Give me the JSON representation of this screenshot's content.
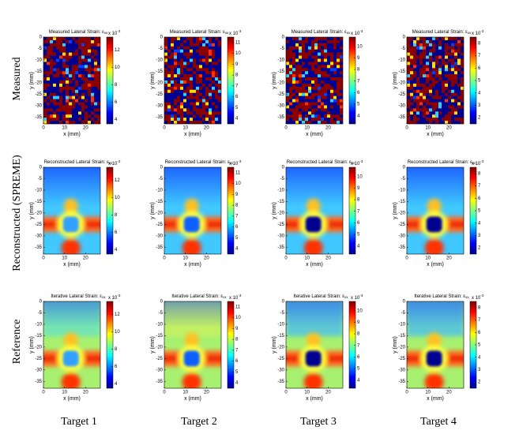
{
  "row_labels": [
    "Measured",
    "Reconstructed (SPREME)",
    "Reference"
  ],
  "column_labels": [
    "Target 1",
    "Target 2",
    "Target 3",
    "Target 4"
  ],
  "chart_data": [
    {
      "type": "heatmap",
      "title": "Measured Lateral Strain: ε",
      "title_sub": "xx",
      "xlabel": "x (mm)",
      "ylabel": "y (mm)",
      "xlim": [
        0,
        27
      ],
      "xticks": [
        0,
        10,
        20
      ],
      "ylim": [
        -38,
        0
      ],
      "yticks": [
        0,
        -5,
        -10,
        -15,
        -20,
        -25,
        -30,
        -35
      ],
      "colorbar": {
        "lim": [
          3.5,
          13.5
        ],
        "ticks": [
          4,
          6,
          8,
          10,
          12
        ],
        "multiplier": "x 10",
        "exponent": "-3"
      }
    },
    {
      "type": "heatmap",
      "title": "Measured Lateral Strain: ε",
      "title_sub": "xx",
      "xlabel": "x (mm)",
      "ylabel": "y (mm)",
      "xlim": [
        0,
        27
      ],
      "xticks": [
        0,
        10,
        20
      ],
      "ylim": [
        -38,
        0
      ],
      "yticks": [
        0,
        -5,
        -10,
        -15,
        -20,
        -25,
        -30,
        -35
      ],
      "colorbar": {
        "lim": [
          3.5,
          11.5
        ],
        "ticks": [
          4,
          5,
          6,
          7,
          8,
          9,
          10,
          11
        ],
        "multiplier": "x 10",
        "exponent": "-3"
      }
    },
    {
      "type": "heatmap",
      "title": "Measured Lateral Strain: ε",
      "title_sub": "xx",
      "xlabel": "x (mm)",
      "ylabel": "y (mm)",
      "xlim": [
        0,
        27
      ],
      "xticks": [
        0,
        10,
        20
      ],
      "ylim": [
        -38,
        0
      ],
      "yticks": [
        0,
        -5,
        -10,
        -15,
        -20,
        -25,
        -30,
        -35
      ],
      "colorbar": {
        "lim": [
          3.3,
          10.8
        ],
        "ticks": [
          4,
          5,
          6,
          7,
          8,
          9,
          10
        ],
        "multiplier": "x 10",
        "exponent": "-3"
      }
    },
    {
      "type": "heatmap",
      "title": "Measured Lateral Strain: ε",
      "title_sub": "xx",
      "xlabel": "x (mm)",
      "ylabel": "y (mm)",
      "xlim": [
        0,
        27
      ],
      "xticks": [
        0,
        10,
        20
      ],
      "ylim": [
        -38,
        0
      ],
      "yticks": [
        0,
        -5,
        -10,
        -15,
        -20,
        -25,
        -30,
        -35
      ],
      "colorbar": {
        "lim": [
          1.5,
          8.5
        ],
        "ticks": [
          2,
          3,
          4,
          5,
          6,
          7,
          8
        ],
        "multiplier": "x 10",
        "exponent": "-3"
      }
    },
    {
      "type": "heatmap",
      "title": "Reconstructed Lateral Strain: ε",
      "title_sub": "xx",
      "xlabel": "x (mm)",
      "ylabel": "y (mm)",
      "xlim": [
        0,
        27
      ],
      "xticks": [
        0,
        10,
        20
      ],
      "ylim": [
        -38,
        0
      ],
      "yticks": [
        0,
        -5,
        -10,
        -15,
        -20,
        -25,
        -30,
        -35
      ],
      "colorbar": {
        "lim": [
          3.5,
          13.5
        ],
        "ticks": [
          4,
          6,
          8,
          10,
          12
        ],
        "multiplier": "x 10",
        "exponent": "-3"
      }
    },
    {
      "type": "heatmap",
      "title": "Reconstructed Lateral Strain: ε",
      "title_sub": "xx",
      "xlabel": "x (mm)",
      "ylabel": "y (mm)",
      "xlim": [
        0,
        27
      ],
      "xticks": [
        0,
        10,
        20
      ],
      "ylim": [
        -38,
        0
      ],
      "yticks": [
        0,
        -5,
        -10,
        -15,
        -20,
        -25,
        -30,
        -35
      ],
      "colorbar": {
        "lim": [
          3.5,
          11.5
        ],
        "ticks": [
          4,
          5,
          6,
          7,
          8,
          9,
          10,
          11
        ],
        "multiplier": "x 10",
        "exponent": "-3"
      }
    },
    {
      "type": "heatmap",
      "title": "Reconstructed Lateral Strain: ε",
      "title_sub": "xx",
      "xlabel": "x (mm)",
      "ylabel": "y (mm)",
      "xlim": [
        0,
        27
      ],
      "xticks": [
        0,
        10,
        20
      ],
      "ylim": [
        -38,
        0
      ],
      "yticks": [
        0,
        -5,
        -10,
        -15,
        -20,
        -25,
        -30,
        -35
      ],
      "colorbar": {
        "lim": [
          3.3,
          10.8
        ],
        "ticks": [
          4,
          5,
          6,
          7,
          8,
          9,
          10
        ],
        "multiplier": "x 10",
        "exponent": "-3"
      }
    },
    {
      "type": "heatmap",
      "title": "Reconstructed Lateral Strain: ε",
      "title_sub": "xx",
      "xlabel": "x (mm)",
      "ylabel": "y (mm)",
      "xlim": [
        0,
        27
      ],
      "xticks": [
        0,
        10,
        20
      ],
      "ylim": [
        -38,
        0
      ],
      "yticks": [
        0,
        -5,
        -10,
        -15,
        -20,
        -25,
        -30,
        -35
      ],
      "colorbar": {
        "lim": [
          1.5,
          8.5
        ],
        "ticks": [
          2,
          3,
          4,
          5,
          6,
          7,
          8
        ],
        "multiplier": "x 10",
        "exponent": "-3"
      }
    },
    {
      "type": "heatmap",
      "title": "Iterative Lateral Strain: ε",
      "title_sub": "xx",
      "xlabel": "x (mm)",
      "ylabel": "y (mm)",
      "xlim": [
        0,
        27
      ],
      "xticks": [
        0,
        10,
        20
      ],
      "ylim": [
        -38,
        0
      ],
      "yticks": [
        0,
        -5,
        -10,
        -15,
        -20,
        -25,
        -30,
        -35
      ],
      "colorbar": {
        "lim": [
          3.5,
          13.5
        ],
        "ticks": [
          4,
          6,
          8,
          10,
          12
        ],
        "multiplier": "x 10",
        "exponent": "-3"
      }
    },
    {
      "type": "heatmap",
      "title": "Iterative Lateral Strain: ε",
      "title_sub": "xx",
      "xlabel": "x (mm)",
      "ylabel": "y (mm)",
      "xlim": [
        0,
        27
      ],
      "xticks": [
        0,
        10,
        20
      ],
      "ylim": [
        -38,
        0
      ],
      "yticks": [
        0,
        -5,
        -10,
        -15,
        -20,
        -25,
        -30,
        -35
      ],
      "colorbar": {
        "lim": [
          3.5,
          11.5
        ],
        "ticks": [
          4,
          5,
          6,
          7,
          8,
          9,
          10,
          11
        ],
        "multiplier": "x 10",
        "exponent": "-3"
      }
    },
    {
      "type": "heatmap",
      "title": "Iterative Lateral Strain: ε",
      "title_sub": "xx",
      "xlabel": "x (mm)",
      "ylabel": "y (mm)",
      "xlim": [
        0,
        27
      ],
      "xticks": [
        0,
        10,
        20
      ],
      "ylim": [
        -38,
        0
      ],
      "yticks": [
        0,
        -5,
        -10,
        -15,
        -20,
        -25,
        -30,
        -35
      ],
      "colorbar": {
        "lim": [
          3.3,
          10.8
        ],
        "ticks": [
          4,
          5,
          6,
          7,
          8,
          9,
          10
        ],
        "multiplier": "x 10",
        "exponent": "-3"
      }
    },
    {
      "type": "heatmap",
      "title": "Iterative Lateral Strain: ε",
      "title_sub": "xx",
      "xlabel": "x (mm)",
      "ylabel": "y (mm)",
      "xlim": [
        0,
        27
      ],
      "xticks": [
        0,
        10,
        20
      ],
      "ylim": [
        -38,
        0
      ],
      "yticks": [
        0,
        -5,
        -10,
        -15,
        -20,
        -25,
        -30,
        -35
      ],
      "colorbar": {
        "lim": [
          1.5,
          8.5
        ],
        "ticks": [
          2,
          3,
          4,
          5,
          6,
          7,
          8
        ],
        "multiplier": "x 10",
        "exponent": "-3"
      }
    }
  ]
}
